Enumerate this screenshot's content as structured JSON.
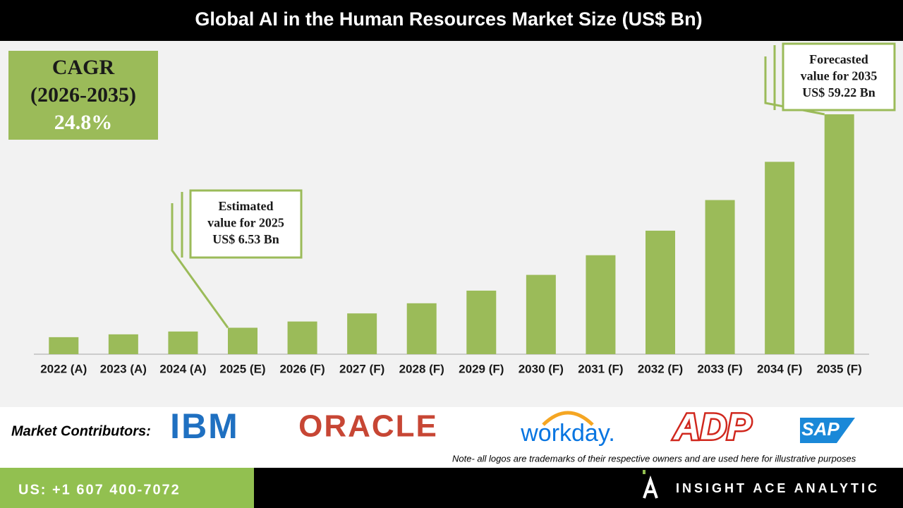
{
  "chart_data": {
    "type": "bar",
    "title": "Global AI in the Human Resources Market Size (US$ Bn)",
    "categories": [
      "2022 (A)",
      "2023 (A)",
      "2024 (A)",
      "2025 (E)",
      "2026 (F)",
      "2027 (F)",
      "2028 (F)",
      "2029 (F)",
      "2030 (F)",
      "2031 (F)",
      "2032 (F)",
      "2033 (F)",
      "2034 (F)",
      "2035 (F)"
    ],
    "values": [
      4.2,
      4.9,
      5.6,
      6.53,
      8.07,
      10.07,
      12.57,
      15.69,
      19.58,
      24.43,
      30.49,
      38.05,
      47.49,
      59.22
    ],
    "color": "#9bbb59",
    "annotations": [
      {
        "category": 3,
        "lines": [
          "Estimated",
          "value for 2025",
          "US$ 6.53 Bn"
        ]
      },
      {
        "category": 13,
        "lines": [
          "Forecasted",
          "value for 2035",
          "US$ 59.22 Bn"
        ]
      }
    ]
  },
  "cagr": {
    "label": "CAGR",
    "period": "(2026-2035)",
    "value": "24.8%"
  },
  "contributors": {
    "label": "Market Contributors:",
    "logos": [
      "IBM",
      "ORACLE",
      "workday.",
      "ADP",
      "SAP"
    ],
    "note": "Note- all logos are trademarks of their respective owners and are used here for illustrative purposes"
  },
  "footer": {
    "phone": "US: +1 607 400-7072",
    "brand": "INSIGHT ACE ANALYTIC"
  }
}
